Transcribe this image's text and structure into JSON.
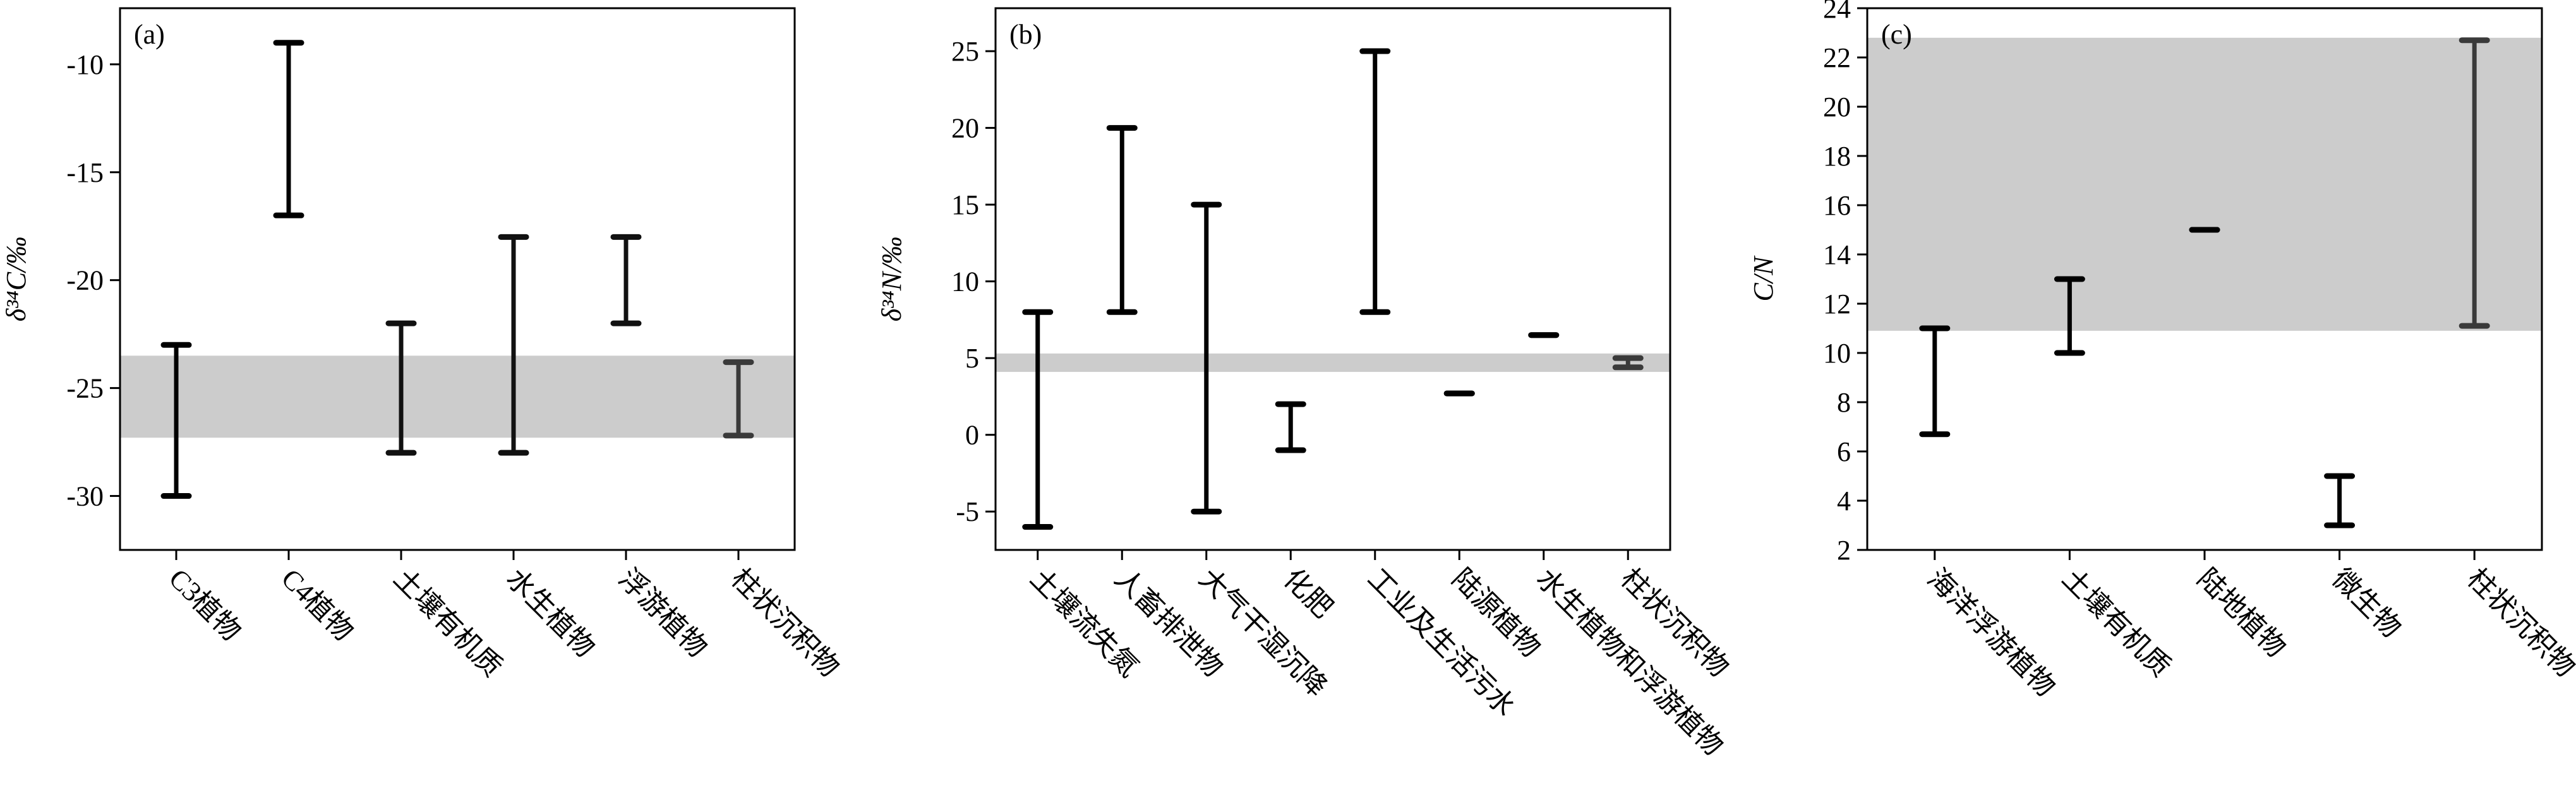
{
  "chart_data": [
    {
      "type": "range",
      "panel": "(a)",
      "ylabel": "δ³⁴C/‰",
      "categories": [
        "C3植物",
        "C4植物",
        "土壤有机质",
        "水生植物",
        "浮游植物",
        "柱状沉积物"
      ],
      "low": [
        -30,
        -17,
        -28,
        -28,
        -22,
        -27.2
      ],
      "high": [
        -23,
        -9,
        -22,
        -18,
        -18,
        -23.8
      ],
      "colors": [
        "#000000",
        "#000000",
        "#111111",
        "#111111",
        "#111111",
        "#3a3a3a"
      ],
      "band": [
        -27.3,
        -23.5
      ],
      "band_color": "#cccccc",
      "ylim": [
        -32.5,
        -7.4
      ],
      "yticks": [
        -30,
        -25,
        -20,
        -15,
        -10
      ]
    },
    {
      "type": "range",
      "panel": "(b)",
      "ylabel": "δ³⁴N/‰",
      "categories": [
        "土壤流失氮",
        "人畜排泄物",
        "大气干湿沉降",
        "化肥",
        "工业及生活污水",
        "陆源植物",
        "水生植物和浮游植物",
        "柱状沉积物"
      ],
      "low": [
        -6,
        8,
        -5,
        -1,
        8,
        2.7,
        6.5,
        4.4
      ],
      "high": [
        8,
        20,
        15,
        2,
        25,
        2.7,
        6.5,
        5.0
      ],
      "colors": [
        "#000000",
        "#000000",
        "#000000",
        "#000000",
        "#000000",
        "#000000",
        "#000000",
        "#3a3a3a"
      ],
      "band": [
        4.1,
        5.3
      ],
      "band_color": "#cccccc",
      "ylim": [
        -7.5,
        27.8
      ],
      "yticks": [
        -5,
        0,
        5,
        10,
        15,
        20,
        25
      ]
    },
    {
      "type": "range",
      "panel": "(c)",
      "ylabel": "C/N",
      "categories": [
        "海洋浮游植物",
        "土壤有机质",
        "陆地植物",
        "微生物",
        "柱状沉积物"
      ],
      "low": [
        6.7,
        10,
        15,
        3,
        11.1
      ],
      "high": [
        11,
        13,
        15,
        5,
        22.7
      ],
      "colors": [
        "#000000",
        "#000000",
        "#000000",
        "#000000",
        "#3a3a3a"
      ],
      "band": [
        10.9,
        22.8
      ],
      "band_color": "#cccccc",
      "ylim": [
        2,
        24
      ],
      "yticks": [
        2,
        4,
        6,
        8,
        10,
        12,
        14,
        16,
        18,
        20,
        22,
        24
      ]
    }
  ]
}
